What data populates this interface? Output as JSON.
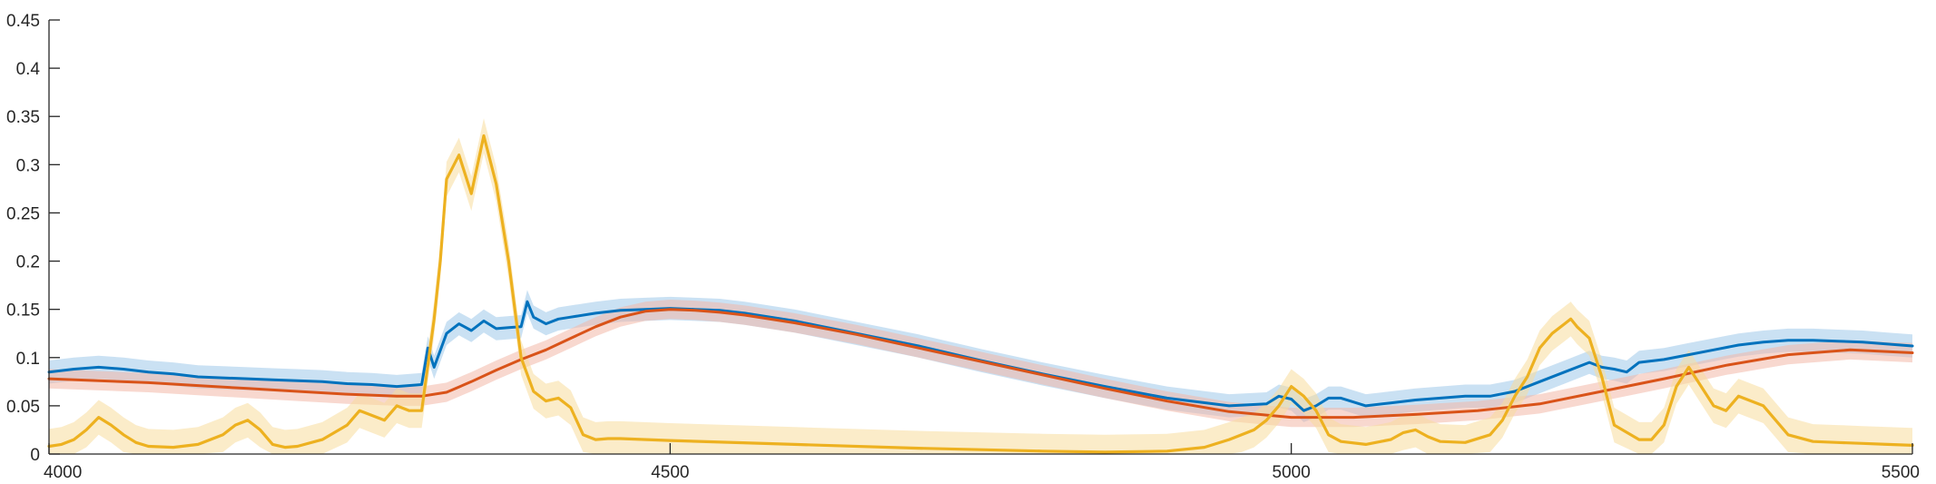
{
  "chart_data": {
    "type": "line",
    "title": "",
    "xlabel": "",
    "ylabel": "",
    "xlim": [
      4000,
      5500
    ],
    "ylim": [
      0,
      0.45
    ],
    "grid": false,
    "legend": "none",
    "x_ticks": [
      4000,
      4500,
      5000,
      5500
    ],
    "x_tick_labels": [
      "4000",
      "4500",
      "5000",
      "5500"
    ],
    "y_ticks": [
      0,
      0.05,
      0.1,
      0.15,
      0.2,
      0.25,
      0.3,
      0.35,
      0.4,
      0.45
    ],
    "y_tick_labels": [
      "0",
      "0.05",
      "0.1",
      "0.15",
      "0.2",
      "0.25",
      "0.3",
      "0.35",
      "0.4",
      "0.45"
    ],
    "series": [
      {
        "color": "#0072BD",
        "band_color": "#9ec8ea",
        "band_width": 0.012,
        "x": [
          4000,
          4020,
          4040,
          4060,
          4080,
          4100,
          4120,
          4140,
          4160,
          4180,
          4200,
          4220,
          4240,
          4260,
          4280,
          4300,
          4305,
          4310,
          4320,
          4330,
          4340,
          4350,
          4360,
          4370,
          4380,
          4385,
          4390,
          4400,
          4410,
          4420,
          4440,
          4460,
          4480,
          4500,
          4520,
          4540,
          4560,
          4600,
          4650,
          4700,
          4750,
          4800,
          4850,
          4900,
          4950,
          4980,
          4990,
          5000,
          5010,
          5020,
          5030,
          5040,
          5060,
          5080,
          5100,
          5120,
          5140,
          5160,
          5180,
          5200,
          5220,
          5240,
          5250,
          5260,
          5270,
          5280,
          5300,
          5320,
          5340,
          5360,
          5380,
          5400,
          5420,
          5440,
          5460,
          5480,
          5500
        ],
        "y": [
          0.085,
          0.088,
          0.09,
          0.088,
          0.085,
          0.083,
          0.08,
          0.079,
          0.078,
          0.077,
          0.076,
          0.075,
          0.073,
          0.072,
          0.07,
          0.072,
          0.11,
          0.09,
          0.125,
          0.135,
          0.128,
          0.138,
          0.13,
          0.131,
          0.132,
          0.158,
          0.142,
          0.135,
          0.14,
          0.142,
          0.146,
          0.149,
          0.15,
          0.151,
          0.15,
          0.149,
          0.146,
          0.138,
          0.125,
          0.112,
          0.097,
          0.083,
          0.07,
          0.058,
          0.05,
          0.052,
          0.06,
          0.057,
          0.045,
          0.05,
          0.058,
          0.058,
          0.05,
          0.053,
          0.056,
          0.058,
          0.06,
          0.06,
          0.065,
          0.075,
          0.085,
          0.095,
          0.09,
          0.088,
          0.085,
          0.095,
          0.098,
          0.103,
          0.108,
          0.113,
          0.116,
          0.118,
          0.118,
          0.117,
          0.116,
          0.114,
          0.112
        ]
      },
      {
        "color": "#D95319",
        "band_color": "#f2b8a8",
        "band_width": 0.01,
        "x": [
          4000,
          4040,
          4080,
          4120,
          4160,
          4200,
          4240,
          4280,
          4300,
          4320,
          4340,
          4360,
          4380,
          4400,
          4420,
          4440,
          4460,
          4480,
          4500,
          4520,
          4540,
          4560,
          4600,
          4650,
          4700,
          4750,
          4800,
          4850,
          4900,
          4950,
          5000,
          5050,
          5100,
          5150,
          5200,
          5250,
          5300,
          5350,
          5400,
          5450,
          5500
        ],
        "y": [
          0.078,
          0.076,
          0.074,
          0.071,
          0.068,
          0.065,
          0.062,
          0.06,
          0.06,
          0.064,
          0.075,
          0.087,
          0.098,
          0.108,
          0.12,
          0.132,
          0.142,
          0.148,
          0.15,
          0.149,
          0.147,
          0.144,
          0.136,
          0.124,
          0.11,
          0.096,
          0.082,
          0.068,
          0.055,
          0.044,
          0.038,
          0.038,
          0.041,
          0.045,
          0.052,
          0.065,
          0.078,
          0.092,
          0.103,
          0.108,
          0.105
        ]
      },
      {
        "color": "#EDB120",
        "band_color": "#f7dc9c",
        "band_width": 0.018,
        "x": [
          4000,
          4010,
          4020,
          4030,
          4040,
          4050,
          4060,
          4070,
          4080,
          4100,
          4120,
          4140,
          4150,
          4160,
          4170,
          4180,
          4190,
          4200,
          4220,
          4240,
          4250,
          4260,
          4270,
          4280,
          4290,
          4300,
          4310,
          4315,
          4320,
          4330,
          4340,
          4350,
          4360,
          4370,
          4380,
          4390,
          4400,
          4410,
          4420,
          4430,
          4440,
          4450,
          4460,
          4500,
          4600,
          4700,
          4800,
          4850,
          4900,
          4930,
          4950,
          4960,
          4970,
          4980,
          4990,
          5000,
          5010,
          5020,
          5030,
          5040,
          5060,
          5080,
          5090,
          5100,
          5110,
          5120,
          5140,
          5160,
          5170,
          5180,
          5190,
          5200,
          5210,
          5220,
          5225,
          5230,
          5240,
          5250,
          5260,
          5280,
          5290,
          5300,
          5310,
          5320,
          5330,
          5340,
          5350,
          5360,
          5380,
          5400,
          5420,
          5440,
          5460,
          5480,
          5500
        ],
        "y": [
          0.008,
          0.01,
          0.015,
          0.025,
          0.038,
          0.03,
          0.02,
          0.012,
          0.008,
          0.007,
          0.01,
          0.02,
          0.03,
          0.035,
          0.025,
          0.01,
          0.007,
          0.008,
          0.015,
          0.03,
          0.045,
          0.04,
          0.035,
          0.05,
          0.045,
          0.045,
          0.14,
          0.2,
          0.285,
          0.31,
          0.27,
          0.33,
          0.28,
          0.2,
          0.1,
          0.065,
          0.055,
          0.058,
          0.048,
          0.02,
          0.015,
          0.016,
          0.016,
          0.014,
          0.01,
          0.006,
          0.003,
          0.002,
          0.003,
          0.007,
          0.015,
          0.02,
          0.025,
          0.035,
          0.05,
          0.07,
          0.06,
          0.045,
          0.02,
          0.013,
          0.01,
          0.015,
          0.022,
          0.025,
          0.018,
          0.013,
          0.012,
          0.02,
          0.035,
          0.06,
          0.08,
          0.11,
          0.125,
          0.135,
          0.14,
          0.132,
          0.12,
          0.08,
          0.03,
          0.015,
          0.015,
          0.03,
          0.07,
          0.09,
          0.07,
          0.05,
          0.045,
          0.06,
          0.05,
          0.02,
          0.013,
          0.012,
          0.011,
          0.01,
          0.009
        ]
      }
    ]
  }
}
